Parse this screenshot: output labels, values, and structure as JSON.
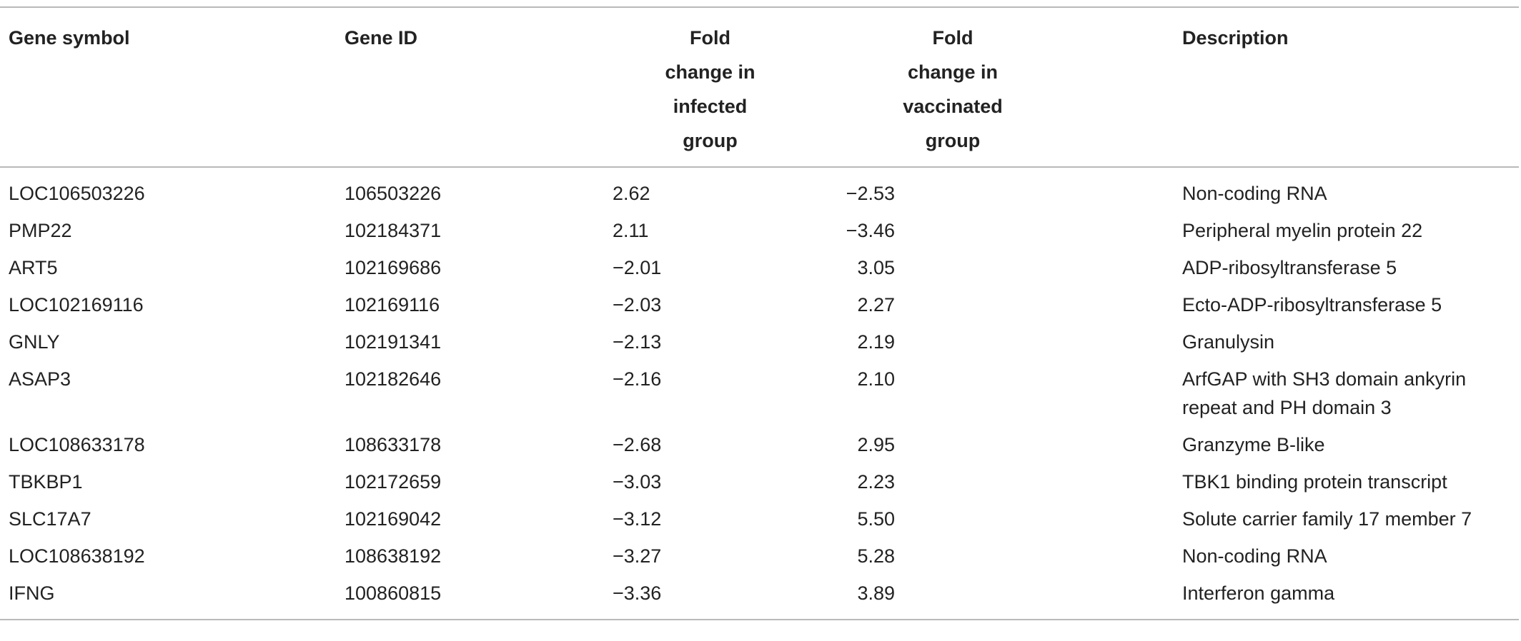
{
  "table": {
    "headers": {
      "gene_symbol": "Gene symbol",
      "gene_id": "Gene ID",
      "fold_infected": [
        "Fold",
        "change in",
        "infected",
        "group"
      ],
      "fold_vaccinated": [
        "Fold",
        "change in",
        "vaccinated",
        "group"
      ],
      "description": "Description"
    },
    "rows": [
      {
        "symbol": "LOC106503226",
        "id": "106503226",
        "infected": "2.62",
        "vaccinated": "−2.53",
        "description": "Non-coding RNA"
      },
      {
        "symbol": "PMP22",
        "id": "102184371",
        "infected": "2.11",
        "vaccinated": "−3.46",
        "description": "Peripheral myelin protein 22"
      },
      {
        "symbol": "ART5",
        "id": "102169686",
        "infected": "−2.01",
        "vaccinated": "3.05",
        "description": "ADP-ribosyltransferase 5"
      },
      {
        "symbol": "LOC102169116",
        "id": "102169116",
        "infected": "−2.03",
        "vaccinated": "2.27",
        "description": "Ecto-ADP-ribosyltransferase 5"
      },
      {
        "symbol": "GNLY",
        "id": "102191341",
        "infected": "−2.13",
        "vaccinated": "2.19",
        "description": "Granulysin"
      },
      {
        "symbol": "ASAP3",
        "id": "102182646",
        "infected": "−2.16",
        "vaccinated": "2.10",
        "description": "ArfGAP with SH3 domain ankyrin repeat and PH domain 3"
      },
      {
        "symbol": "LOC108633178",
        "id": "108633178",
        "infected": "−2.68",
        "vaccinated": "2.95",
        "description": "Granzyme B-like"
      },
      {
        "symbol": "TBKBP1",
        "id": "102172659",
        "infected": "−3.03",
        "vaccinated": "2.23",
        "description": "TBK1 binding protein transcript"
      },
      {
        "symbol": "SLC17A7",
        "id": "102169042",
        "infected": "−3.12",
        "vaccinated": "5.50",
        "description": "Solute carrier family 17 member 7"
      },
      {
        "symbol": "LOC108638192",
        "id": "108638192",
        "infected": "−3.27",
        "vaccinated": "5.28",
        "description": "Non-coding RNA"
      },
      {
        "symbol": "IFNG",
        "id": "100860815",
        "infected": "−3.36",
        "vaccinated": "3.89",
        "description": "Interferon gamma"
      }
    ]
  }
}
